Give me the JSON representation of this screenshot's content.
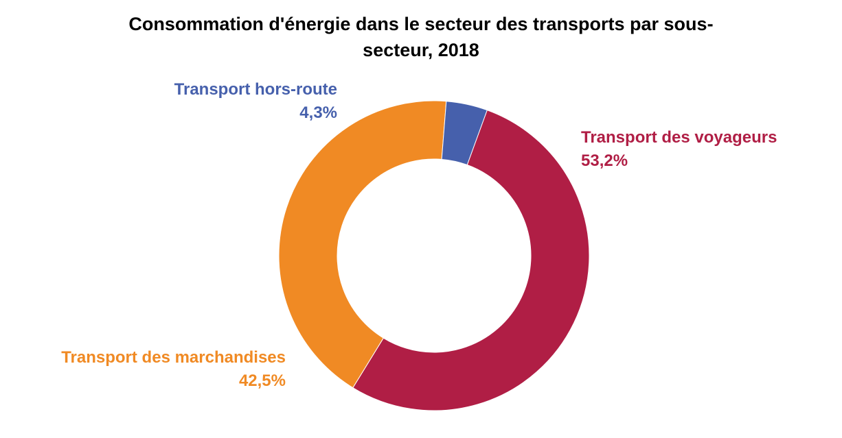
{
  "chart_data": {
    "type": "pie",
    "title_lines": [
      "Consommation d'énergie dans le secteur des transports par sous-",
      "secteur, 2018"
    ],
    "donut": true,
    "legend": "none",
    "slices": [
      {
        "name": "Transport des voyageurs",
        "value": 53.2,
        "label": "53,2%",
        "color": "#B01E45"
      },
      {
        "name": "Transport des marchandises",
        "value": 42.5,
        "label": "42,5%",
        "color": "#F08A24"
      },
      {
        "name": "Transport hors-route",
        "value": 4.3,
        "label": "4,3%",
        "color": "#4660AC"
      }
    ]
  }
}
